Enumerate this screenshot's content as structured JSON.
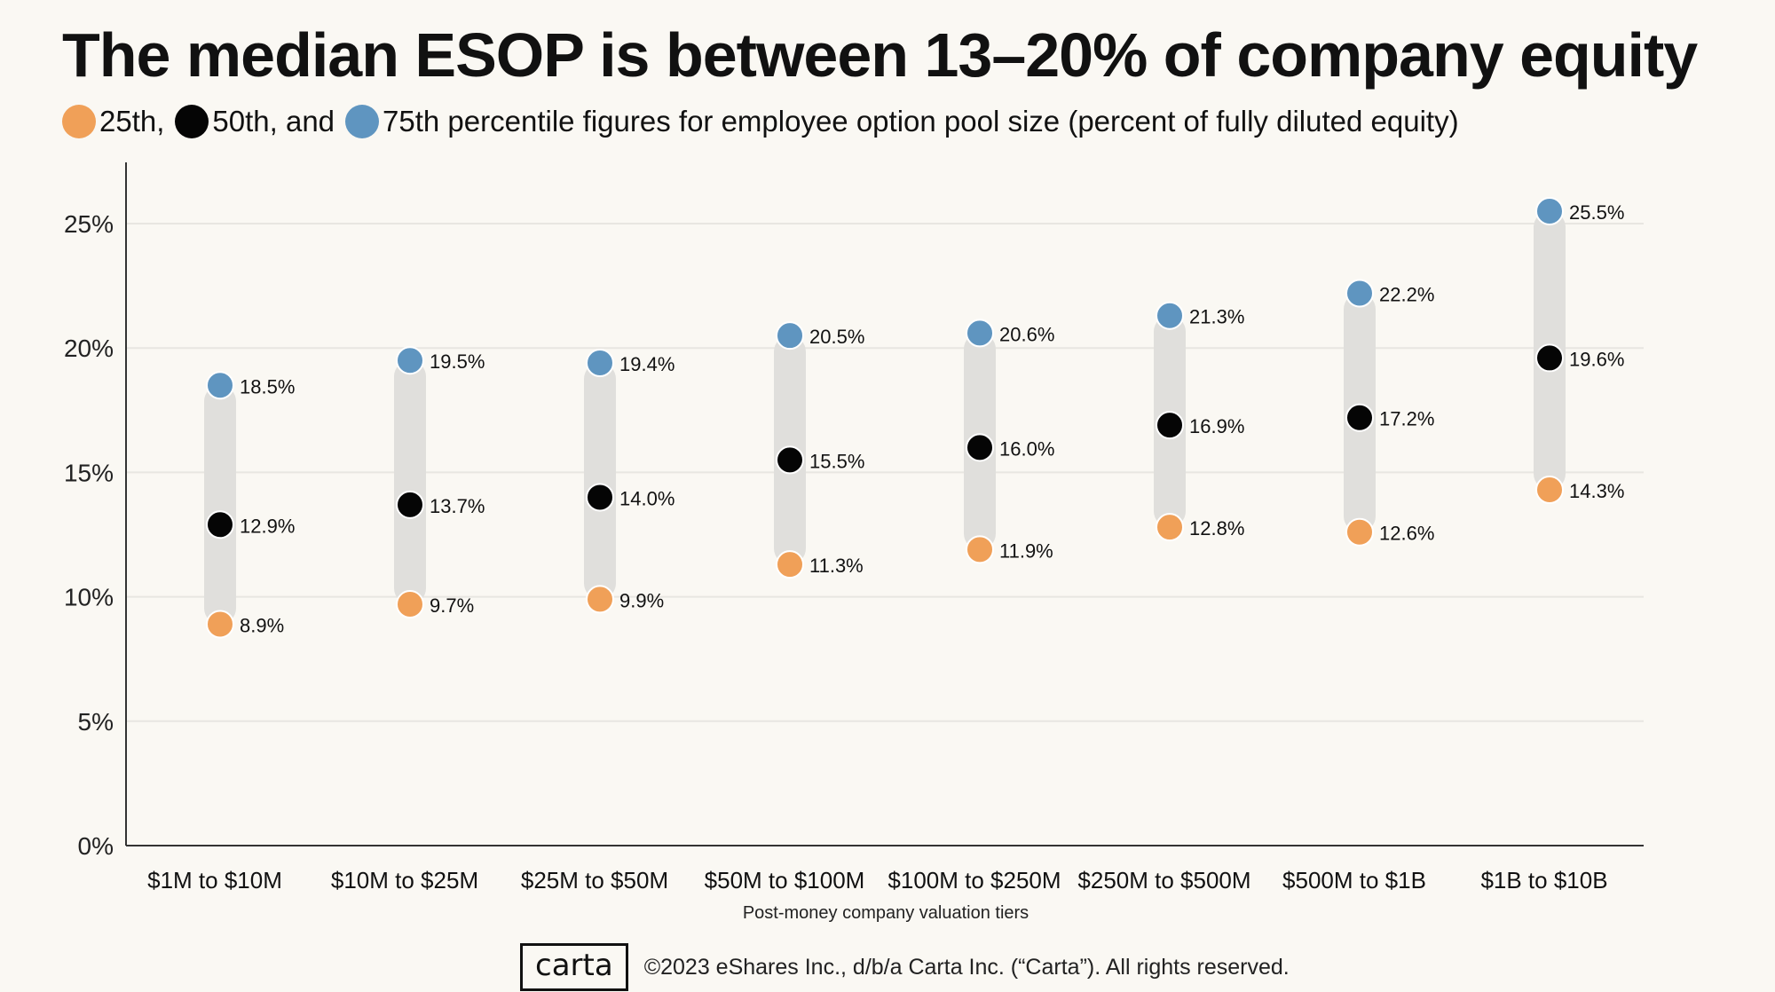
{
  "title": "The median ESOP is between 13–20% of company equity",
  "legend": {
    "p25_label": "25th,",
    "p50_label": "50th, and",
    "p75_label": "75th percentile figures for employee option pool size (percent of fully diluted equity)"
  },
  "colors": {
    "p25": "#f0a058",
    "p50": "#050505",
    "p75": "#5f95c0",
    "bar": "#e0dfdc",
    "grid": "#e8e6e1",
    "axis": "#333333"
  },
  "footer": {
    "logo": "carta",
    "copyright": "©2023 eShares Inc., d/b/a Carta Inc. (“Carta”). All rights reserved."
  },
  "chart_data": {
    "type": "dot_range",
    "title": "The median ESOP is between 13–20% of company equity",
    "xlabel": "Post-money company valuation tiers",
    "ylabel": "",
    "ylim": [
      0,
      27.5
    ],
    "yticks": [
      0,
      5,
      10,
      15,
      20,
      25
    ],
    "ytick_labels": [
      "0%",
      "5%",
      "10%",
      "15%",
      "20%",
      "25%"
    ],
    "grid": true,
    "categories": [
      "$1M to $10M",
      "$10M to $25M",
      "$25M to $50M",
      "$50M to $100M",
      "$100M to $250M",
      "$250M to $500M",
      "$500M to $1B",
      "$1B to $10B"
    ],
    "series": [
      {
        "name": "25th",
        "key": "p25",
        "values": [
          8.9,
          9.7,
          9.9,
          11.3,
          11.9,
          12.8,
          12.6,
          14.3
        ],
        "labels": [
          "8.9%",
          "9.7%",
          "9.9%",
          "11.3%",
          "11.9%",
          "12.8%",
          "12.6%",
          "14.3%"
        ]
      },
      {
        "name": "50th",
        "key": "p50",
        "values": [
          12.9,
          13.7,
          14.0,
          15.5,
          16.0,
          16.9,
          17.2,
          19.6
        ],
        "labels": [
          "12.9%",
          "13.7%",
          "14.0%",
          "15.5%",
          "16.0%",
          "16.9%",
          "17.2%",
          "19.6%"
        ]
      },
      {
        "name": "75th",
        "key": "p75",
        "values": [
          18.5,
          19.5,
          19.4,
          20.5,
          20.6,
          21.3,
          22.2,
          25.5
        ],
        "labels": [
          "18.5%",
          "19.5%",
          "19.4%",
          "20.5%",
          "20.6%",
          "21.3%",
          "22.2%",
          "25.5%"
        ]
      }
    ]
  }
}
